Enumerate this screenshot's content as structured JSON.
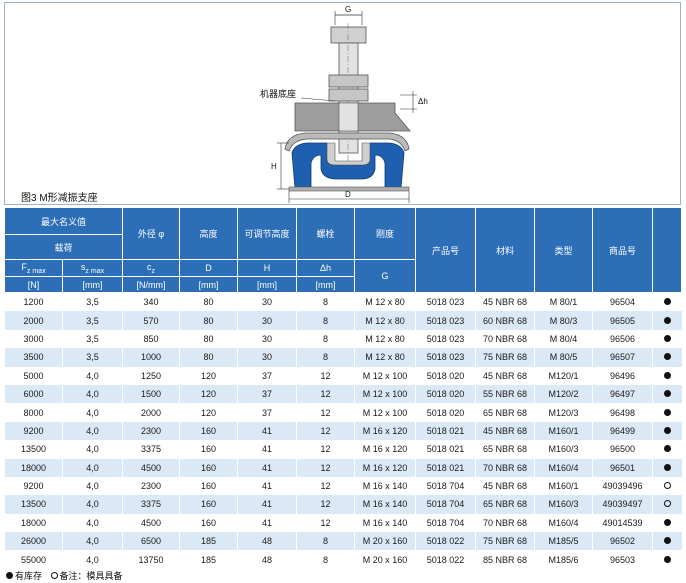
{
  "figure": {
    "caption": "图3 M形减振支座",
    "labels": {
      "g": "G",
      "machine_base": "机器底座",
      "dh": "Δh",
      "h": "H",
      "d": "D"
    }
  },
  "table": {
    "headers": {
      "max_nominal": "最大名义值",
      "load": "载荷",
      "outer_dia": "外径 φ",
      "height": "高度",
      "adj_height": "可调节高度",
      "bolt": "螺栓",
      "stiffness": "刚度",
      "product_no": "产品号",
      "material": "材料",
      "type": "类型",
      "item_no": "商品号",
      "fz": "F",
      "fz_sub": "z max",
      "sz": "s",
      "sz_sub": "z max",
      "cz": "c",
      "cz_sub": "z",
      "d": "D",
      "h": "H",
      "dh": "Δh",
      "g": "G",
      "unit_n": "[N]",
      "unit_mm1": "[mm]",
      "unit_nmm": "[N/mm]",
      "unit_mm2": "[mm]",
      "unit_mm3": "[mm]",
      "unit_mm4": "[mm]"
    },
    "rows": [
      {
        "f": "1200",
        "s": "3,5",
        "c": "340",
        "d": "80",
        "h": "30",
        "dh": "8",
        "g": "M 12 x 80",
        "p": "5018 023",
        "m": "45 NBR 68",
        "t": "M 80/1",
        "i": "96504",
        "stock": "filled"
      },
      {
        "f": "2000",
        "s": "3,5",
        "c": "570",
        "d": "80",
        "h": "30",
        "dh": "8",
        "g": "M 12 x 80",
        "p": "5018 023",
        "m": "60 NBR 68",
        "t": "M 80/3",
        "i": "96505",
        "stock": "filled"
      },
      {
        "f": "3000",
        "s": "3,5",
        "c": "850",
        "d": "80",
        "h": "30",
        "dh": "8",
        "g": "M 12 x 80",
        "p": "5018 023",
        "m": "70 NBR 68",
        "t": "M 80/4",
        "i": "96506",
        "stock": "filled"
      },
      {
        "f": "3500",
        "s": "3,5",
        "c": "1000",
        "d": "80",
        "h": "30",
        "dh": "8",
        "g": "M 12 x 80",
        "p": "5018 023",
        "m": "75 NBR 68",
        "t": "M 80/5",
        "i": "96507",
        "stock": "filled"
      },
      {
        "f": "5000",
        "s": "4,0",
        "c": "1250",
        "d": "120",
        "h": "37",
        "dh": "12",
        "g": "M 12 x 100",
        "p": "5018 020",
        "m": "45 NBR 68",
        "t": "M120/1",
        "i": "96496",
        "stock": "filled"
      },
      {
        "f": "6000",
        "s": "4,0",
        "c": "1500",
        "d": "120",
        "h": "37",
        "dh": "12",
        "g": "M 12 x 100",
        "p": "5018 020",
        "m": "55 NBR 68",
        "t": "M120/2",
        "i": "96497",
        "stock": "filled"
      },
      {
        "f": "8000",
        "s": "4,0",
        "c": "2000",
        "d": "120",
        "h": "37",
        "dh": "12",
        "g": "M 12 x 100",
        "p": "5018 020",
        "m": "65 NBR 68",
        "t": "M120/3",
        "i": "96498",
        "stock": "filled"
      },
      {
        "f": "9200",
        "s": "4,0",
        "c": "2300",
        "d": "160",
        "h": "41",
        "dh": "12",
        "g": "M 16 x 120",
        "p": "5018 021",
        "m": "45 NBR 68",
        "t": "M160/1",
        "i": "96499",
        "stock": "filled"
      },
      {
        "f": "13500",
        "s": "4,0",
        "c": "3375",
        "d": "160",
        "h": "41",
        "dh": "12",
        "g": "M 16 x 120",
        "p": "5018 021",
        "m": "65 NBR 68",
        "t": "M160/3",
        "i": "96500",
        "stock": "filled"
      },
      {
        "f": "18000",
        "s": "4,0",
        "c": "4500",
        "d": "160",
        "h": "41",
        "dh": "12",
        "g": "M 16 x 120",
        "p": "5018 021",
        "m": "70 NBR 68",
        "t": "M160/4",
        "i": "96501",
        "stock": "filled"
      },
      {
        "f": "9200",
        "s": "4,0",
        "c": "2300",
        "d": "160",
        "h": "41",
        "dh": "12",
        "g": "M 16 x 140",
        "p": "5018 704",
        "m": "45 NBR 68",
        "t": "M160/1",
        "i": "49039496",
        "stock": "hollow"
      },
      {
        "f": "13500",
        "s": "4,0",
        "c": "3375",
        "d": "160",
        "h": "41",
        "dh": "12",
        "g": "M 16 x 140",
        "p": "5018 704",
        "m": "65 NBR 68",
        "t": "M160/3",
        "i": "49039497",
        "stock": "hollow"
      },
      {
        "f": "18000",
        "s": "4,0",
        "c": "4500",
        "d": "160",
        "h": "41",
        "dh": "12",
        "g": "M 16 x 140",
        "p": "5018 704",
        "m": "70 NBR 68",
        "t": "M160/4",
        "i": "49014539",
        "stock": "filled"
      },
      {
        "f": "26000",
        "s": "4,0",
        "c": "6500",
        "d": "185",
        "h": "48",
        "dh": "8",
        "g": "M 20 x 160",
        "p": "5018 022",
        "m": "75 NBR 68",
        "t": "M185/5",
        "i": "96502",
        "stock": "filled"
      },
      {
        "f": "55000",
        "s": "4,0",
        "c": "13750",
        "d": "185",
        "h": "48",
        "dh": "8",
        "g": "M 20 x 160",
        "p": "5018 022",
        "m": "85 NBR 68",
        "t": "M185/6",
        "i": "96503",
        "stock": "filled"
      }
    ]
  },
  "legend": {
    "in_stock": "有库存",
    "note": "备注：模具具备"
  },
  "colors": {
    "header_blue": "#2d6fb7",
    "row_alt": "#dbe8f5",
    "rubber_blue": "#1f5fb0"
  }
}
